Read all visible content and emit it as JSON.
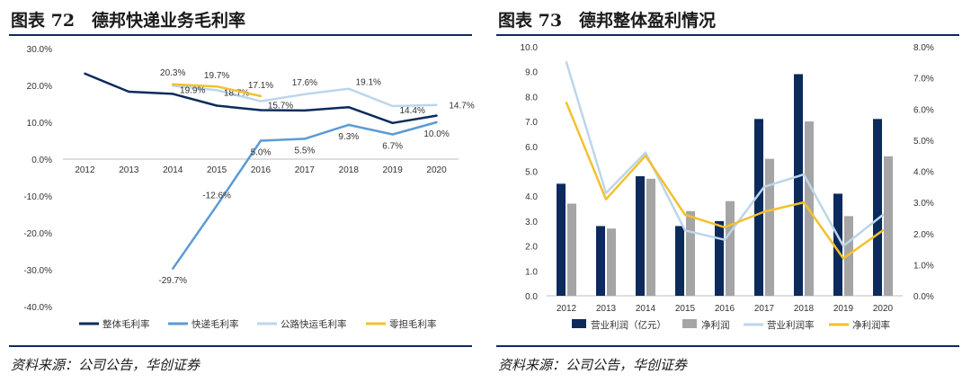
{
  "left": {
    "title": "图表 72　德邦快递业务毛利率",
    "source": "资料来源：公司公告，华创证券",
    "chart_data": {
      "type": "line",
      "title": "德邦快递业务毛利率",
      "categories": [
        "2012",
        "2013",
        "2014",
        "2015",
        "2016",
        "2017",
        "2018",
        "2019",
        "2020"
      ],
      "y_ticks": [
        "30.0%",
        "20.0%",
        "10.0%",
        "0.0%",
        "-10.0%",
        "-20.0%",
        "-30.0%",
        "-40.0%"
      ],
      "ylim": [
        -40,
        30
      ],
      "series": [
        {
          "name": "整体毛利率",
          "color": "#0c2b5c",
          "values": [
            23.2,
            18.3,
            17.7,
            14.5,
            13.3,
            13.2,
            14.1,
            9.8,
            11.8
          ],
          "labels": [
            null,
            null,
            null,
            null,
            null,
            null,
            null,
            null,
            null
          ]
        },
        {
          "name": "快递毛利率",
          "color": "#5b9bd5",
          "values": [
            null,
            null,
            -29.7,
            -12.6,
            5.0,
            5.5,
            9.3,
            6.7,
            10.0
          ],
          "labels": [
            null,
            null,
            "-29.7%",
            "-12.6%",
            "5.0%",
            "5.5%",
            "9.3%",
            "6.7%",
            "10.0%"
          ]
        },
        {
          "name": "公路快运毛利率",
          "color": "#bcd6ea",
          "values": [
            null,
            null,
            19.9,
            18.7,
            15.7,
            17.6,
            19.1,
            14.4,
            14.7
          ],
          "labels": [
            null,
            null,
            "19.9%",
            "18.7%",
            "15.7%",
            "17.6%",
            "19.1%",
            "14.4%",
            "14.7%"
          ]
        },
        {
          "name": "零担毛利率",
          "color": "#f2c12e",
          "values": [
            null,
            null,
            20.3,
            19.7,
            17.1,
            null,
            null,
            null,
            null
          ],
          "labels": [
            null,
            null,
            "20.3%",
            "19.7%",
            "17.1%",
            null,
            null,
            null,
            null
          ]
        }
      ],
      "legend": "bottom"
    }
  },
  "right": {
    "title": "图表 73　德邦整体盈利情况",
    "source": "资料来源：公司公告，华创证券",
    "chart_data": {
      "type": "bar",
      "title": "德邦整体盈利情况",
      "categories": [
        "2012",
        "2013",
        "2014",
        "2015",
        "2016",
        "2017",
        "2018",
        "2019",
        "2020"
      ],
      "y_left_ticks": [
        "10.0",
        "9.0",
        "8.0",
        "7.0",
        "6.0",
        "5.0",
        "4.0",
        "3.0",
        "2.0",
        "1.0",
        "0.0"
      ],
      "y_right_ticks": [
        "8.0%",
        "7.0%",
        "6.0%",
        "5.0%",
        "4.0%",
        "3.0%",
        "2.0%",
        "1.0%",
        "0.0%"
      ],
      "ylim_left": [
        0,
        10
      ],
      "ylim_right": [
        0,
        8
      ],
      "bar_series": [
        {
          "name": "营业利润（亿元）",
          "color": "#0c2b5c",
          "values": [
            4.5,
            2.8,
            4.8,
            2.8,
            3.0,
            7.1,
            8.9,
            4.1,
            7.1
          ]
        },
        {
          "name": "净利润",
          "color": "#a5a5a5",
          "values": [
            3.7,
            2.7,
            4.7,
            3.4,
            3.8,
            5.5,
            7.0,
            3.2,
            5.6
          ]
        }
      ],
      "line_series": [
        {
          "name": "营业利润率",
          "color": "#bcd6ea",
          "values": [
            7.5,
            3.3,
            4.6,
            2.1,
            1.8,
            3.5,
            3.9,
            1.6,
            2.6
          ]
        },
        {
          "name": "净利润率",
          "color": "#f2c12e",
          "values": [
            6.2,
            3.1,
            4.5,
            2.6,
            2.2,
            2.7,
            3.0,
            1.2,
            2.1
          ]
        }
      ],
      "legend": "bottom"
    }
  }
}
